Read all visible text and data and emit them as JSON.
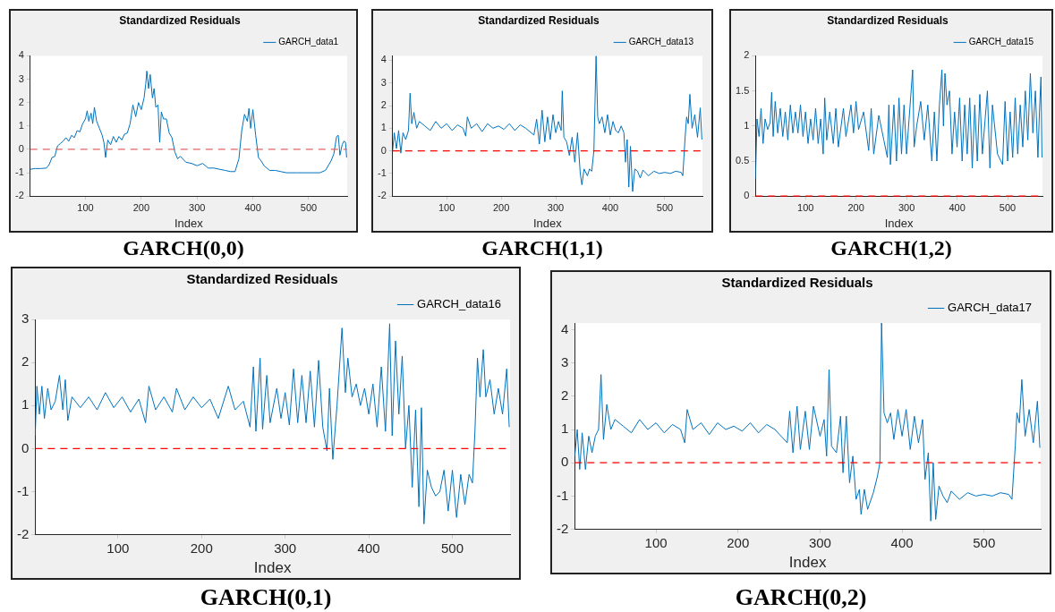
{
  "chart_data": [
    {
      "type": "line",
      "title": "Standardized Residuals",
      "xlabel": "Index",
      "legend": "top right",
      "xlim": [
        1,
        569
      ],
      "xticks": [
        100,
        200,
        300,
        400,
        500
      ],
      "ylim": [
        -2,
        4
      ],
      "yticks": [
        -2,
        -1,
        0,
        1,
        2,
        3,
        4
      ],
      "annotations": [
        "GARCH(0,0)"
      ],
      "ref_lines": [
        {
          "axis": "y",
          "value": 0,
          "color": "#e06666",
          "line_style": "dashed"
        }
      ],
      "x": [
        1,
        10,
        20,
        30,
        35,
        40,
        45,
        50,
        55,
        60,
        65,
        70,
        75,
        80,
        85,
        90,
        95,
        100,
        103,
        106,
        110,
        113,
        116,
        120,
        125,
        130,
        133,
        136,
        140,
        145,
        150,
        155,
        160,
        165,
        170,
        175,
        180,
        185,
        190,
        195,
        200,
        205,
        208,
        210,
        213,
        216,
        220,
        223,
        226,
        230,
        233,
        236,
        240,
        245,
        250,
        255,
        260,
        265,
        270,
        280,
        290,
        300,
        310,
        320,
        330,
        340,
        350,
        360,
        368,
        375,
        380,
        385,
        390,
        393,
        396,
        400,
        405,
        410,
        415,
        420,
        430,
        440,
        450,
        460,
        480,
        500,
        520,
        530,
        540,
        545,
        550,
        553,
        556,
        560,
        563,
        566,
        568
      ],
      "series": [
        {
          "name": "GARCH_data1",
          "color": "#0072bd",
          "values": [
            -0.85,
            -0.82,
            -0.82,
            -0.8,
            -0.65,
            -0.35,
            -0.3,
            0.15,
            0.25,
            0.35,
            0.5,
            0.35,
            0.6,
            0.5,
            0.8,
            0.75,
            1.1,
            1.3,
            1.65,
            1.2,
            1.55,
            1.1,
            1.8,
            1.2,
            0.9,
            0.6,
            0.3,
            -0.35,
            0.4,
            0.2,
            0.55,
            0.3,
            0.55,
            0.4,
            0.65,
            0.7,
            1.1,
            1.9,
            1.4,
            2.0,
            1.7,
            2.2,
            2.8,
            3.35,
            2.6,
            3.2,
            2.2,
            2.6,
            1.8,
            1.9,
            0.3,
            1.6,
            1.3,
            1.3,
            0.7,
            0.5,
            -0.1,
            -0.4,
            -0.3,
            -0.55,
            -0.6,
            -0.7,
            -0.6,
            -0.8,
            -0.8,
            -0.85,
            -0.9,
            -0.95,
            -0.95,
            -0.4,
            0.8,
            1.5,
            1.2,
            1.75,
            0.9,
            1.7,
            0.6,
            -0.35,
            -0.5,
            -0.7,
            -0.9,
            -0.9,
            -0.95,
            -1.0,
            -1.0,
            -1.0,
            -1.0,
            -0.9,
            -0.5,
            -0.2,
            0.55,
            0.6,
            -0.25,
            0.2,
            0.35,
            0.3,
            -0.35
          ]
        }
      ]
    },
    {
      "type": "line",
      "title": "Standardized Residuals",
      "xlabel": "Index",
      "legend": "top right",
      "xlim": [
        1,
        569
      ],
      "xticks": [
        100,
        200,
        300,
        400,
        500
      ],
      "ylim": [
        -2,
        4.2
      ],
      "yticks": [
        -2,
        -1,
        0,
        1,
        2,
        3,
        4
      ],
      "annotations": [
        "GARCH(1,1)"
      ],
      "ref_lines": [
        {
          "axis": "y",
          "value": 0,
          "color": "#ff0000",
          "line_style": "dashed"
        }
      ],
      "x": [
        1,
        4,
        8,
        12,
        16,
        20,
        25,
        30,
        33,
        36,
        40,
        45,
        50,
        60,
        70,
        80,
        90,
        100,
        110,
        120,
        130,
        135,
        138,
        145,
        155,
        165,
        175,
        185,
        195,
        205,
        215,
        225,
        235,
        245,
        260,
        265,
        270,
        275,
        280,
        285,
        290,
        295,
        300,
        305,
        310,
        312,
        315,
        320,
        325,
        330,
        335,
        340,
        345,
        348,
        352,
        358,
        362,
        366,
        370,
        374,
        377,
        380,
        385,
        390,
        395,
        400,
        405,
        410,
        415,
        420,
        425,
        428,
        431,
        434,
        437,
        441,
        445,
        450,
        455,
        460,
        470,
        480,
        490,
        500,
        510,
        520,
        530,
        533,
        537,
        540,
        543,
        546,
        550,
        555,
        560,
        565,
        568
      ],
      "series": [
        {
          "name": "GARCH_data13",
          "color": "#0072bd",
          "values": [
            0,
            0.8,
            0.1,
            0.9,
            -0.1,
            0.8,
            0.5,
            0.9,
            2.55,
            1.2,
            1.7,
            1.0,
            1.3,
            1.1,
            0.9,
            1.3,
            1.0,
            1.2,
            0.9,
            1.15,
            1.0,
            0.65,
            1.5,
            1.0,
            1.2,
            0.85,
            1.2,
            1.0,
            1.1,
            0.95,
            1.2,
            0.9,
            1.15,
            1.0,
            0.7,
            1.4,
            0.3,
            1.8,
            0.4,
            1.5,
            0.5,
            1.6,
            0.8,
            1.3,
            0.9,
            2.65,
            0.6,
            0.4,
            -0.2,
            0.6,
            -0.5,
            0.8,
            -1.0,
            -1.5,
            -0.8,
            -1.1,
            -0.8,
            -0.9,
            0.0,
            4.2,
            1.5,
            1.2,
            1.5,
            0.8,
            1.6,
            0.7,
            1.3,
            0.9,
            0.8,
            1.1,
            0.8,
            -0.5,
            0.5,
            -1.6,
            0.2,
            -1.8,
            -0.8,
            -0.9,
            -1.2,
            -0.85,
            -1.1,
            -0.9,
            -1.0,
            -0.95,
            -1.0,
            -0.9,
            -0.95,
            -1.1,
            0.5,
            1.5,
            1.2,
            2.5,
            1.0,
            1.6,
            0.6,
            1.9,
            0.5
          ]
        }
      ]
    },
    {
      "type": "line",
      "title": "Standardized Residuals",
      "xlabel": "Index",
      "legend": "top right",
      "xlim": [
        1,
        569
      ],
      "xticks": [
        100,
        200,
        300,
        400,
        500
      ],
      "ylim": [
        0,
        2
      ],
      "yticks": [
        0,
        0.5,
        1,
        1.5,
        2
      ],
      "annotations": [
        "GARCH(1,2)"
      ],
      "ref_lines": [
        {
          "axis": "y",
          "value": 0,
          "color": "#ff0000",
          "line_style": "dashed"
        }
      ],
      "x": [
        1,
        4,
        8,
        12,
        16,
        20,
        25,
        30,
        33,
        36,
        40,
        45,
        50,
        55,
        60,
        65,
        70,
        75,
        80,
        85,
        90,
        95,
        100,
        105,
        110,
        115,
        120,
        125,
        130,
        135,
        138,
        142,
        148,
        155,
        160,
        165,
        175,
        180,
        190,
        195,
        200,
        205,
        215,
        225,
        230,
        235,
        245,
        255,
        262,
        265,
        268,
        275,
        280,
        285,
        290,
        295,
        300,
        305,
        312,
        315,
        320,
        328,
        335,
        342,
        350,
        355,
        360,
        365,
        370,
        373,
        376,
        380,
        385,
        390,
        395,
        400,
        405,
        410,
        415,
        420,
        425,
        430,
        435,
        440,
        445,
        450,
        460,
        465,
        470,
        480,
        490,
        495,
        500,
        505,
        510,
        515,
        520,
        525,
        530,
        535,
        540,
        545,
        550,
        555,
        560,
        563,
        566,
        568
      ],
      "series": [
        {
          "name": "GARCH_data15",
          "color": "#0072bd",
          "values": [
            0.25,
            1.1,
            0.85,
            1.25,
            0.75,
            1.1,
            0.95,
            1.05,
            1.48,
            0.85,
            1.35,
            0.9,
            1.25,
            0.85,
            1.2,
            0.8,
            1.3,
            0.9,
            1.2,
            0.9,
            1.3,
            0.85,
            1.2,
            0.75,
            1.1,
            0.8,
            1.25,
            0.75,
            1.1,
            0.6,
            1.4,
            0.8,
            1.2,
            0.75,
            1.25,
            0.7,
            1.25,
            0.85,
            1.3,
            0.9,
            1.35,
            0.95,
            1.2,
            0.65,
            1.25,
            0.6,
            1.15,
            0.8,
            0.55,
            1.3,
            0.45,
            1.3,
            0.5,
            1.4,
            0.6,
            1.3,
            0.6,
            1.1,
            1.8,
            0.7,
            1.0,
            1.35,
            0.8,
            1.3,
            0.5,
            1.2,
            0.5,
            1.3,
            1.8,
            1.0,
            1.75,
            1.3,
            1.5,
            0.6,
            1.2,
            0.7,
            1.4,
            0.5,
            1.3,
            0.6,
            1.4,
            0.4,
            1.3,
            0.5,
            1.45,
            0.6,
            1.5,
            0.4,
            1.3,
            0.6,
            0.45,
            1.35,
            0.5,
            1.2,
            0.55,
            1.4,
            0.6,
            1.3,
            0.7,
            1.5,
            0.8,
            1.75,
            0.9,
            1.5,
            0.55,
            1.2,
            1.7,
            0.55
          ]
        }
      ]
    },
    {
      "type": "line",
      "title": "Standardized Residuals",
      "xlabel": "Index",
      "legend": "top right",
      "xlim": [
        1,
        569
      ],
      "xticks": [
        100,
        200,
        300,
        400,
        500
      ],
      "ylim": [
        -2,
        3
      ],
      "yticks": [
        -2,
        -1,
        0,
        1,
        2,
        3
      ],
      "annotations": [
        "GARCH(0,1)"
      ],
      "ref_lines": [
        {
          "axis": "y",
          "value": 0,
          "color": "#ff0000",
          "line_style": "dashed"
        }
      ],
      "x": [
        1,
        3,
        6,
        9,
        12,
        16,
        20,
        25,
        30,
        34,
        37,
        40,
        45,
        55,
        65,
        75,
        85,
        95,
        105,
        115,
        125,
        133,
        137,
        145,
        155,
        165,
        170,
        180,
        190,
        200,
        210,
        220,
        232,
        240,
        250,
        258,
        262,
        265,
        270,
        273,
        278,
        282,
        290,
        295,
        300,
        305,
        310,
        315,
        320,
        325,
        330,
        335,
        340,
        345,
        350,
        353,
        357,
        362,
        368,
        372,
        375,
        380,
        385,
        390,
        395,
        400,
        405,
        410,
        415,
        420,
        425,
        428,
        432,
        436,
        440,
        444,
        448,
        452,
        456,
        460,
        463,
        466,
        470,
        475,
        480,
        485,
        490,
        495,
        500,
        505,
        510,
        515,
        520,
        524,
        527,
        530,
        533,
        537,
        540,
        545,
        550,
        555,
        560,
        565,
        568
      ],
      "series": [
        {
          "name": "GARCH_data16",
          "color": "#0072bd",
          "values": [
            0.3,
            1.45,
            0.8,
            1.45,
            0.7,
            1.4,
            0.9,
            1.1,
            1.7,
            0.9,
            1.6,
            0.65,
            1.2,
            0.95,
            1.2,
            0.9,
            1.3,
            0.95,
            1.2,
            0.85,
            1.15,
            0.6,
            1.45,
            0.9,
            1.2,
            0.85,
            1.4,
            0.9,
            1.2,
            0.95,
            1.15,
            0.7,
            1.45,
            0.9,
            1.1,
            0.5,
            1.9,
            0.4,
            2.1,
            0.45,
            1.7,
            0.6,
            1.4,
            0.7,
            1.3,
            0.55,
            1.85,
            0.6,
            1.7,
            0.6,
            1.8,
            0.5,
            2.05,
            0.5,
            -0.05,
            1.4,
            -0.25,
            1.0,
            2.8,
            1.3,
            2.1,
            1.2,
            1.5,
            1.0,
            1.4,
            0.8,
            1.5,
            0.5,
            1.9,
            0.4,
            2.9,
            0.3,
            2.5,
            0.8,
            2.15,
            0.0,
            1.0,
            -0.9,
            0.9,
            -1.35,
            0.95,
            -1.75,
            -0.5,
            -0.9,
            -1.1,
            -1.0,
            -0.5,
            -1.45,
            -0.5,
            -1.6,
            -0.6,
            -1.3,
            -0.6,
            -0.8,
            0.4,
            2.1,
            1.2,
            2.3,
            1.2,
            1.6,
            0.8,
            1.4,
            0.8,
            1.85,
            0.5
          ]
        }
      ]
    },
    {
      "type": "line",
      "title": "Standardized Residuals",
      "xlabel": "Index",
      "legend": "top right",
      "xlim": [
        1,
        569
      ],
      "xticks": [
        100,
        200,
        300,
        400,
        500
      ],
      "ylim": [
        -2,
        4.2
      ],
      "yticks": [
        -2,
        -1,
        0,
        1,
        2,
        3,
        4
      ],
      "annotations": [
        "GARCH(0,2)"
      ],
      "ref_lines": [
        {
          "axis": "y",
          "value": 0,
          "color": "#ff0000",
          "line_style": "dashed"
        }
      ],
      "x": [
        1,
        4,
        7,
        10,
        14,
        18,
        22,
        26,
        30,
        33,
        36,
        40,
        45,
        50,
        60,
        70,
        80,
        90,
        100,
        110,
        120,
        130,
        135,
        138,
        145,
        155,
        165,
        175,
        185,
        195,
        205,
        215,
        225,
        235,
        245,
        260,
        263,
        267,
        272,
        276,
        282,
        287,
        292,
        300,
        305,
        308,
        311,
        314,
        320,
        325,
        328,
        332,
        336,
        340,
        344,
        348,
        350,
        354,
        358,
        365,
        370,
        373,
        375,
        378,
        382,
        386,
        390,
        395,
        400,
        405,
        410,
        415,
        420,
        425,
        428,
        432,
        435,
        438,
        441,
        445,
        450,
        455,
        460,
        470,
        480,
        490,
        500,
        510,
        520,
        530,
        534,
        538,
        540,
        543,
        546,
        550,
        555,
        560,
        565,
        568
      ],
      "series": [
        {
          "name": "GARCH_data17",
          "color": "#0072bd",
          "values": [
            0.2,
            1.0,
            -0.2,
            0.9,
            -0.2,
            0.8,
            0.3,
            0.8,
            1.0,
            2.65,
            0.7,
            1.75,
            1.0,
            1.3,
            1.1,
            0.9,
            1.3,
            1.0,
            1.2,
            0.9,
            1.15,
            1.0,
            0.6,
            1.6,
            1.0,
            1.2,
            0.85,
            1.2,
            1.0,
            1.1,
            0.95,
            1.2,
            0.9,
            1.15,
            1.0,
            0.6,
            1.55,
            0.3,
            1.7,
            0.4,
            1.55,
            0.4,
            1.7,
            0.8,
            1.3,
            0.2,
            2.8,
            0.5,
            0.3,
            1.4,
            -0.3,
            1.4,
            -0.6,
            0.2,
            -1.1,
            -0.8,
            -1.55,
            -0.8,
            -1.4,
            -0.9,
            -0.4,
            0.0,
            4.2,
            1.5,
            1.2,
            1.5,
            0.7,
            1.6,
            0.8,
            1.6,
            0.4,
            1.4,
            0.6,
            1.3,
            -0.5,
            0.3,
            -1.75,
            0.0,
            -1.7,
            -0.7,
            -1.0,
            -1.2,
            -0.85,
            -1.1,
            -0.9,
            -1.0,
            -0.95,
            -1.0,
            -0.9,
            -0.95,
            -1.1,
            0.5,
            1.5,
            1.2,
            2.5,
            0.8,
            1.6,
            0.6,
            1.85,
            0.45
          ]
        }
      ]
    }
  ]
}
